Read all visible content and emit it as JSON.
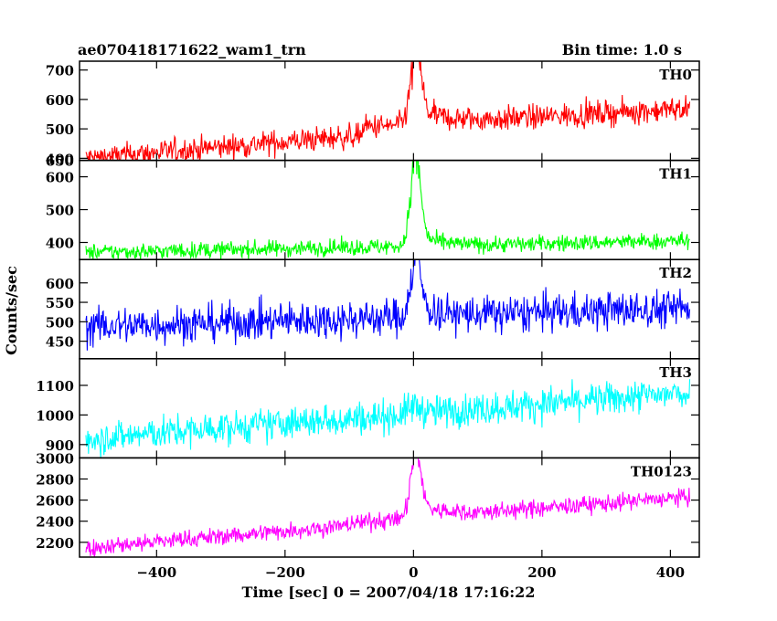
{
  "header": {
    "left_title": "ae070418171622_wam1_trn",
    "right_title": "Bin time: 1.0 s"
  },
  "chart_data": {
    "type": "line",
    "xlabel": "Time [sec] 0 = 2007/04/18 17:16:22",
    "ylabel": "Counts/sec",
    "xlim": [
      -520,
      445
    ],
    "xticks": [
      -400,
      -200,
      0,
      200,
      400
    ],
    "xtick_labels": [
      "−400",
      "−200",
      "0",
      "200",
      "400"
    ],
    "x_start": -510,
    "x_end": 430,
    "x_step": 1,
    "panels": [
      {
        "name": "TH0",
        "color": "#ff0000",
        "ylim": [
          393,
          730
        ],
        "yticks": [
          400,
          500,
          600,
          700
        ],
        "shape": {
          "base_start": 450,
          "base_end": 570,
          "bend": -50,
          "flat_until": -80,
          "noise": 30,
          "peak": 740,
          "peak_width": 8,
          "tail_amp": 60,
          "tail_decay": 40
        }
      },
      {
        "name": "TH1",
        "color": "#00ff00",
        "ylim": [
          348,
          650
        ],
        "yticks": [
          400,
          500,
          600,
          650
        ],
        "shape": {
          "base_start": 370,
          "base_end": 405,
          "bend": 0,
          "flat_until": -520,
          "noise": 18,
          "peak": 630,
          "peak_width": 8,
          "tail_amp": 40,
          "tail_decay": 30
        }
      },
      {
        "name": "TH2",
        "color": "#0000ff",
        "ylim": [
          405,
          660
        ],
        "yticks": [
          450,
          500,
          550,
          600
        ],
        "shape": {
          "base_start": 487,
          "base_end": 535,
          "bend": 0,
          "flat_until": -520,
          "noise": 35,
          "peak": 640,
          "peak_width": 8,
          "tail_amp": 35,
          "tail_decay": 30
        }
      },
      {
        "name": "TH3",
        "color": "#00ffff",
        "ylim": [
          855,
          1190
        ],
        "yticks": [
          900,
          1000,
          1100
        ],
        "shape": {
          "base_start": 920,
          "base_end": 1075,
          "bend": 0,
          "flat_until": -520,
          "noise": 40,
          "peak": 1030,
          "peak_width": 10,
          "tail_amp": 0,
          "tail_decay": 20
        }
      },
      {
        "name": "TH0123",
        "color": "#ff00ff",
        "ylim": [
          2060,
          3000
        ],
        "yticks": [
          2200,
          2400,
          2600,
          2800,
          3000
        ],
        "shape": {
          "base_start": 2190,
          "base_end": 2630,
          "bend": -40,
          "flat_until": -100,
          "noise": 60,
          "peak": 2980,
          "peak_width": 8,
          "tail_amp": 150,
          "tail_decay": 40
        }
      }
    ]
  }
}
